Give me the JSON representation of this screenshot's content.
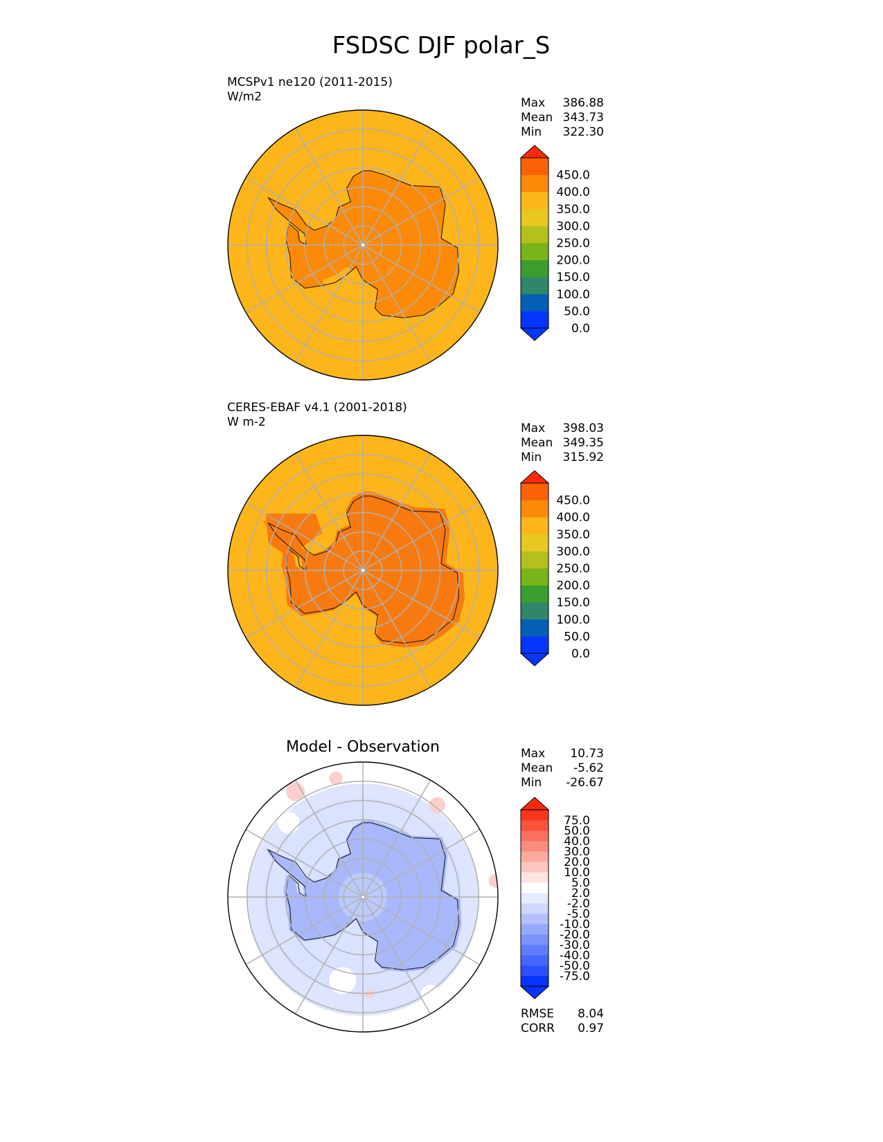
{
  "figure": {
    "title": "FSDSC DJF polar_S"
  },
  "colors": {
    "ocean_fill": "#fcb51b",
    "land_fill": "#fb8a08",
    "land_fill_obs": "#f77a10",
    "grid": "#b0b0b0",
    "diff_light": "#d9e2ff",
    "diff_mid": "#a8b8fb",
    "diff_pink": "#fbd0cc"
  },
  "chart_data": [
    {
      "type": "map",
      "name": "MCSPv1 ne120 (2011-2015)",
      "units": "W/m2",
      "stats": [
        {
          "label": "Max",
          "value": "386.88"
        },
        {
          "label": "Mean",
          "value": "343.73"
        },
        {
          "label": "Min",
          "value": "322.30"
        }
      ],
      "colorbar": {
        "extend": "both",
        "tick_labels": [
          "450.0",
          "400.0",
          "350.0",
          "300.0",
          "250.0",
          "200.0",
          "150.0",
          "100.0",
          "50.0",
          "0.0"
        ],
        "colors": [
          "#0536ff",
          "#0460b4",
          "#2f8669",
          "#3a9e2c",
          "#78b41a",
          "#b4c01b",
          "#e6c820",
          "#fcb51b",
          "#fb8a08",
          "#fb6205"
        ],
        "over_color": "#ff2a0a",
        "under_color": "#0536ff"
      }
    },
    {
      "type": "map",
      "name": "CERES-EBAF v4.1 (2001-2018)",
      "units": "W m-2",
      "stats": [
        {
          "label": "Max",
          "value": "398.03"
        },
        {
          "label": "Mean",
          "value": "349.35"
        },
        {
          "label": "Min",
          "value": "315.92"
        }
      ],
      "colorbar": {
        "extend": "both",
        "tick_labels": [
          "450.0",
          "400.0",
          "350.0",
          "300.0",
          "250.0",
          "200.0",
          "150.0",
          "100.0",
          "50.0",
          "0.0"
        ],
        "colors": [
          "#0536ff",
          "#0460b4",
          "#2f8669",
          "#3a9e2c",
          "#78b41a",
          "#b4c01b",
          "#e6c820",
          "#fcb51b",
          "#fb8a08",
          "#fb6205"
        ],
        "over_color": "#ff2a0a",
        "under_color": "#0536ff"
      }
    },
    {
      "type": "map",
      "name": "Model - Observation",
      "stats": [
        {
          "label": "Max",
          "value": "10.73"
        },
        {
          "label": "Mean",
          "value": "-5.62"
        },
        {
          "label": "Min",
          "value": "-26.67"
        }
      ],
      "metrics": [
        {
          "label": "RMSE",
          "value": "8.04"
        },
        {
          "label": "CORR",
          "value": "0.97"
        }
      ],
      "colorbar": {
        "extend": "both",
        "tick_labels": [
          "75.0",
          "50.0",
          "40.0",
          "30.0",
          "20.0",
          "10.0",
          "5.0",
          "2.0",
          "-2.0",
          "-5.0",
          "-10.0",
          "-20.0",
          "-30.0",
          "-40.0",
          "-50.0",
          "-75.0"
        ],
        "colors": [
          "#0533ff",
          "#2a50ff",
          "#4566fb",
          "#5f7cfb",
          "#7b92fb",
          "#97a9fb",
          "#b3c0fb",
          "#cfd8fb",
          "#e6ebfd",
          "#ffffff",
          "#fde4e1",
          "#fcc7c0",
          "#fbaa9f",
          "#fa8d7e",
          "#f9705d",
          "#f9533c",
          "#f8361b"
        ],
        "over_color": "#ff2a0a",
        "under_color": "#0533ff"
      }
    }
  ]
}
